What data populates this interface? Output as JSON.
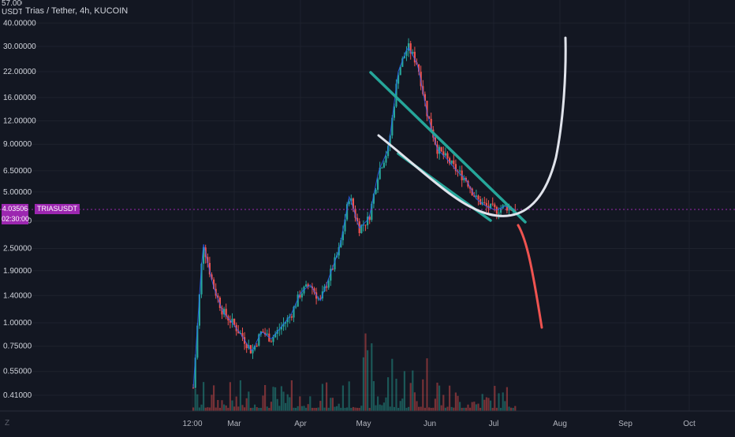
{
  "header": {
    "title": "Trias / Tether, 4h, KUCOIN",
    "top_price_partial": "57.00000",
    "currency": "USDT"
  },
  "price_tag": {
    "value": "4.03506",
    "countdown": "02:30:00",
    "symbol": "TRIASUSDT"
  },
  "logo_text": "Z",
  "colors": {
    "background": "#131722",
    "up": "#26a69a",
    "down": "#ef5350",
    "price_line": "#9c27b0",
    "channel": "#26a69a",
    "cup": "#e0e3eb",
    "drop": "#ef5350",
    "grid": "#1e222d"
  },
  "chart_data": {
    "type": "line",
    "title": "Trias / Tether, 4h, KUCOIN",
    "y_scale": "log",
    "ylim": [
      0.35,
      57
    ],
    "y_ticks": [
      "40.00000",
      "30.00000",
      "22.00000",
      "16.00000",
      "12.00000",
      "9.00000",
      "6.50000",
      "5.00000",
      "3.50000",
      "2.50000",
      "1.90000",
      "1.40000",
      "1.00000",
      "0.75000",
      "0.55000",
      "0.41000"
    ],
    "x_ticks": [
      "12:00",
      "Mar",
      "Apr",
      "May",
      "Jun",
      "Jul",
      "Aug",
      "Sep",
      "Oct"
    ],
    "current_price": 4.03506,
    "series": [
      {
        "values": [
          {
            "x": "12:00",
            "y": 0.45
          },
          {
            "x": "12:00",
            "y": 2.7
          },
          {
            "x": "",
            "y": 1.6
          },
          {
            "x": "",
            "y": 1.15
          },
          {
            "x": "",
            "y": 1.0
          },
          {
            "x": "Mar",
            "y": 0.85
          },
          {
            "x": "",
            "y": 0.7
          },
          {
            "x": "",
            "y": 0.9
          },
          {
            "x": "",
            "y": 0.82
          },
          {
            "x": "",
            "y": 0.95
          },
          {
            "x": "",
            "y": 1.1
          },
          {
            "x": "",
            "y": 1.45
          },
          {
            "x": "Apr",
            "y": 1.6
          },
          {
            "x": "",
            "y": 1.3
          },
          {
            "x": "",
            "y": 1.8
          },
          {
            "x": "",
            "y": 2.5
          },
          {
            "x": "",
            "y": 4.8
          },
          {
            "x": "",
            "y": 3.2
          },
          {
            "x": "",
            "y": 3.6
          },
          {
            "x": "May",
            "y": 6.5
          },
          {
            "x": "",
            "y": 8.5
          },
          {
            "x": "",
            "y": 22
          },
          {
            "x": "",
            "y": 30
          },
          {
            "x": "",
            "y": 24
          },
          {
            "x": "",
            "y": 13
          },
          {
            "x": "Jun",
            "y": 8.5
          },
          {
            "x": "",
            "y": 7.5
          },
          {
            "x": "",
            "y": 6.5
          },
          {
            "x": "",
            "y": 5.8
          },
          {
            "x": "",
            "y": 4.6
          },
          {
            "x": "",
            "y": 4.2
          },
          {
            "x": "Jul",
            "y": 4.0
          },
          {
            "x": "",
            "y": 4.2
          },
          {
            "x": "",
            "y": 4.03
          }
        ]
      }
    ],
    "volume_note": "",
    "annotations": [
      {
        "type": "descending-channel-upper",
        "color": "#26a69a"
      },
      {
        "type": "descending-channel-lower",
        "color": "#26a69a"
      },
      {
        "type": "cup-curve",
        "color": "#e0e3eb"
      },
      {
        "type": "drop-line",
        "color": "#ef5350"
      }
    ]
  }
}
